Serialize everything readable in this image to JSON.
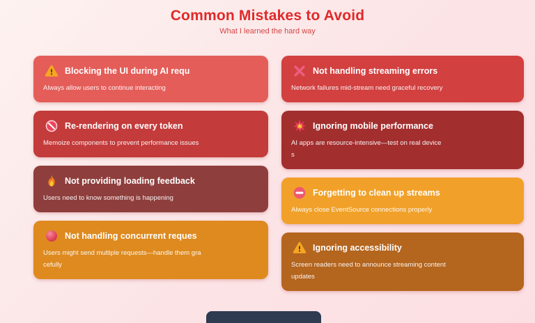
{
  "header": {
    "title": "Common Mistakes to Avoid",
    "subtitle": "What I learned the hard way"
  },
  "colors": {
    "background_from": "#fdf2f0",
    "background_to": "#fcdfe3",
    "title_text": "#e02929",
    "subtitle_text": "#d34545",
    "card_text": "#ffffff",
    "bottom_peek": "#2e3b50"
  },
  "columns": {
    "left": [
      {
        "icon": "warning-icon",
        "color": "#E45D59",
        "title": "Blocking the UI during AI requ",
        "desc_lines": [
          "Always allow users to continue interacting"
        ]
      },
      {
        "icon": "prohibited-icon",
        "color": "#C33B3B",
        "title": "Re-rendering on every token",
        "desc_lines": [
          "Memoize components to prevent performance issues"
        ]
      },
      {
        "icon": "fire-icon",
        "color": "#8E3E3C",
        "title": "Not providing loading feedback",
        "desc_lines": [
          "Users need to know something is happening"
        ]
      },
      {
        "icon": "red-circle-icon",
        "color": "#DE8A1F",
        "title": "Not handling concurrent reques",
        "desc_lines": [
          "Users might send multiple requests—handle them gra",
          "cefully"
        ]
      }
    ],
    "right": [
      {
        "icon": "cross-mark-icon",
        "color": "#D24040",
        "title": "Not handling streaming errors",
        "desc_lines": [
          "Network failures mid-stream need graceful recovery"
        ]
      },
      {
        "icon": "collision-icon",
        "color": "#A32E2E",
        "title": "Ignoring mobile performance",
        "desc_lines": [
          "AI apps are resource-intensive—test on real device",
          "s"
        ]
      },
      {
        "icon": "no-entry-icon",
        "color": "#F1A129",
        "title": "Forgetting to clean up streams",
        "desc_lines": [
          "Always close EventSource connections properly"
        ]
      },
      {
        "icon": "warning-icon",
        "color": "#B4651E",
        "title": "Ignoring accessibility",
        "desc_lines": [
          "Screen readers need to announce streaming content",
          "updates"
        ]
      }
    ]
  }
}
